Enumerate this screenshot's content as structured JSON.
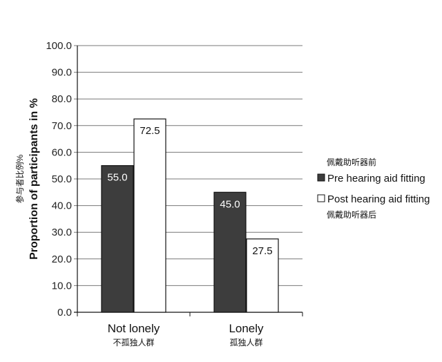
{
  "chart_data": {
    "type": "bar",
    "categories": [
      "Not lonely",
      "Lonely"
    ],
    "categories_cn": [
      "不孤独人群",
      "孤独人群"
    ],
    "series": [
      {
        "name": "Pre hearing aid fitting",
        "name_cn": "佩戴助听器前",
        "color": "#3d3d3d",
        "label_color": "#ffffff",
        "values": [
          55.0,
          45.0
        ],
        "labels": [
          "55.0",
          "45.0"
        ]
      },
      {
        "name": "Post hearing aid fitting",
        "name_cn": "佩戴助听器后",
        "color": "#ffffff",
        "label_color": "#111111",
        "values": [
          72.5,
          27.5
        ],
        "labels": [
          "72.5",
          "27.5"
        ]
      }
    ],
    "ylabel": "Proportion of participants in %",
    "ylabel_cn": "参与者比例%",
    "ylim": [
      0,
      100
    ],
    "yticks": [
      "0.0",
      "10.0",
      "20.0",
      "30.0",
      "40.0",
      "50.0",
      "60.0",
      "70.0",
      "80.0",
      "90.0",
      "100.0"
    ],
    "grid": true,
    "legend_position": "right"
  }
}
